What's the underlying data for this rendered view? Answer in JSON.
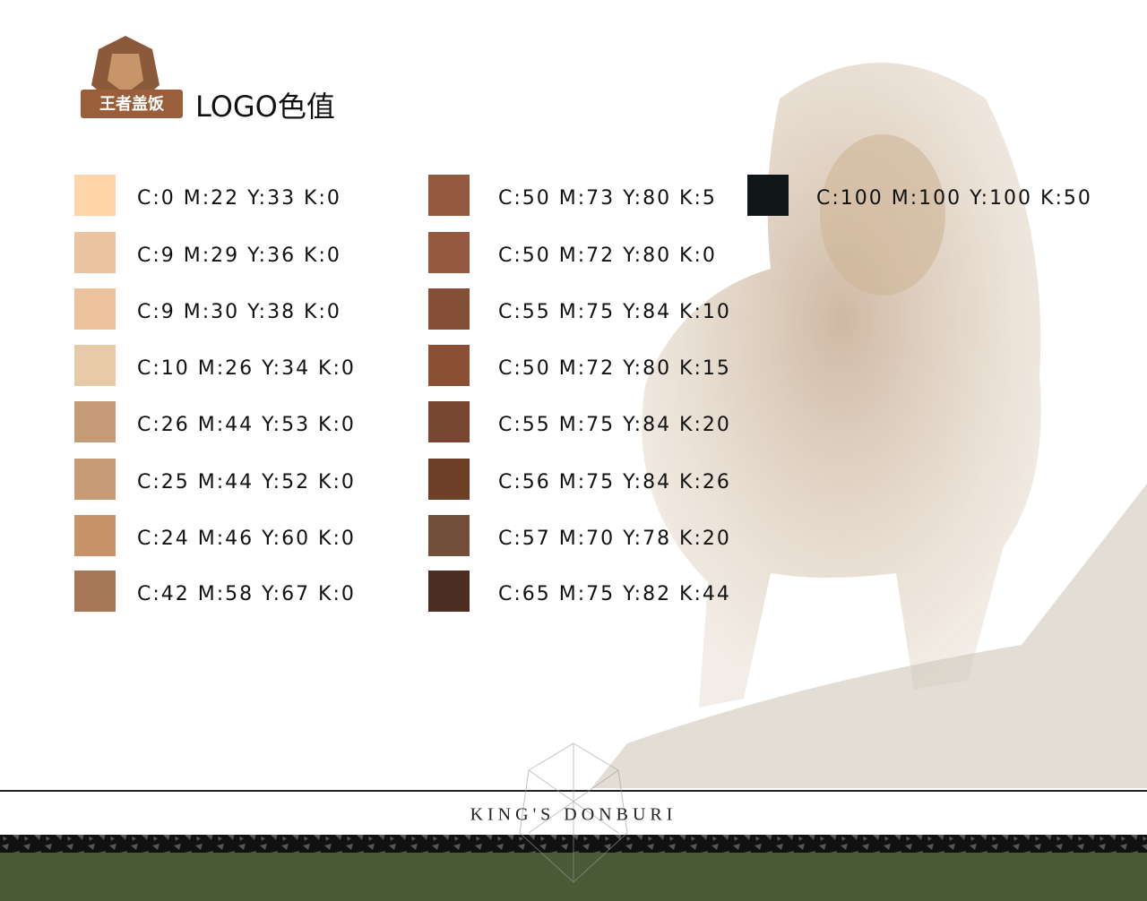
{
  "header": {
    "logo_text": "王者盖饭",
    "title": "LOGO色值"
  },
  "columns": [
    [
      {
        "label": "C:0 M:22 Y:33 K:0",
        "color": "#fdd5a9"
      },
      {
        "label": "C:9 M:29 Y:36 K:0",
        "color": "#eac3a0"
      },
      {
        "label": "C:9 M:30 Y:38 K:0",
        "color": "#ebc29c"
      },
      {
        "label": "C:10 M:26 Y:34 K:0",
        "color": "#e8c9a8"
      },
      {
        "label": "C:26 M:44 Y:53 K:0",
        "color": "#c59a76"
      },
      {
        "label": "C:25 M:44 Y:52 K:0",
        "color": "#c79b76"
      },
      {
        "label": "C:24 M:46 Y:60 K:0",
        "color": "#c9936a"
      },
      {
        "label": "C:42 M:58 Y:67 K:0",
        "color": "#a67657"
      }
    ],
    [
      {
        "label": "C:50 M:73 Y:80 K:5",
        "color": "#925840"
      },
      {
        "label": "C:50 M:72 Y:80 K:0",
        "color": "#955941"
      },
      {
        "label": "C:55 M:75 Y:84 K:10",
        "color": "#844f36"
      },
      {
        "label": "C:50 M:72 Y:80 K:15",
        "color": "#8b5033"
      },
      {
        "label": "C:55 M:75 Y:84 K:20",
        "color": "#784530"
      },
      {
        "label": "C:56 M:75 Y:84 K:26",
        "color": "#6e3f27"
      },
      {
        "label": "C:57 M:70 Y:78 K:20",
        "color": "#734f3b"
      },
      {
        "label": "C:65 M:75 Y:82 K:44",
        "color": "#4b2d22"
      }
    ],
    [
      {
        "label": "C:100 M:100 Y:100 K:50",
        "color": "#0f1618"
      }
    ]
  ],
  "footer": {
    "brand": "KING'S DONBURI"
  }
}
